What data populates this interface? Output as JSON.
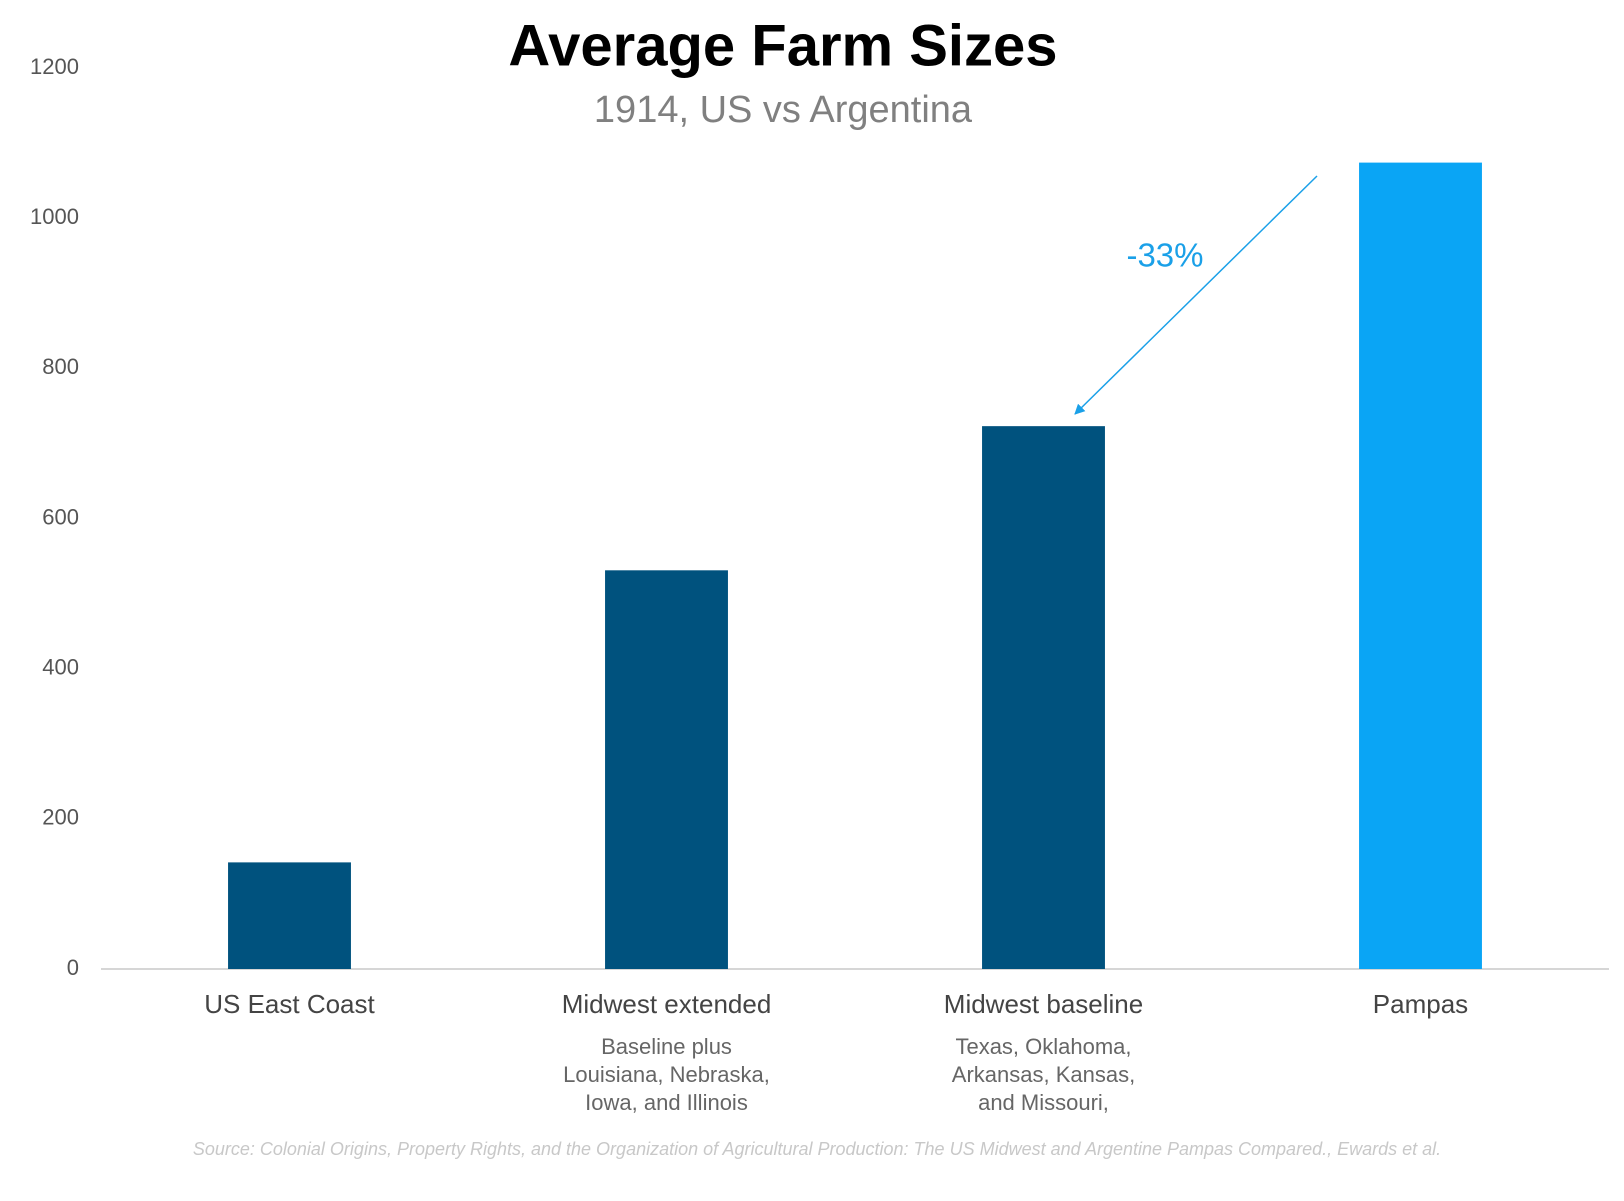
{
  "chart_data": {
    "type": "bar",
    "title": "Average Farm Sizes",
    "subtitle": "1914, US vs Argentina",
    "categories": [
      "US East Coast",
      "Midwest extended",
      "Midwest baseline",
      "Pampas"
    ],
    "category_notes": [
      null,
      [
        "Baseline plus",
        "Louisiana, Nebraska,",
        "Iowa, and Illinois"
      ],
      [
        "Texas, Oklahoma,",
        "Arkansas, Kansas,",
        "and Missouri,"
      ],
      null
    ],
    "values": [
      142,
      531,
      723,
      1074
    ],
    "colors": [
      "#00527e",
      "#00527e",
      "#00527e",
      "#0aa5f5"
    ],
    "ylim": [
      0,
      1200
    ],
    "yticks": [
      0,
      200,
      400,
      600,
      800,
      1000,
      1200
    ],
    "grid": false,
    "annotation": "-33%",
    "source": "Source: Colonial Origins, Property Rights, and the Organization of Agricultural Production: The US Midwest and Argentine Pampas Compared., Ewards et al."
  }
}
